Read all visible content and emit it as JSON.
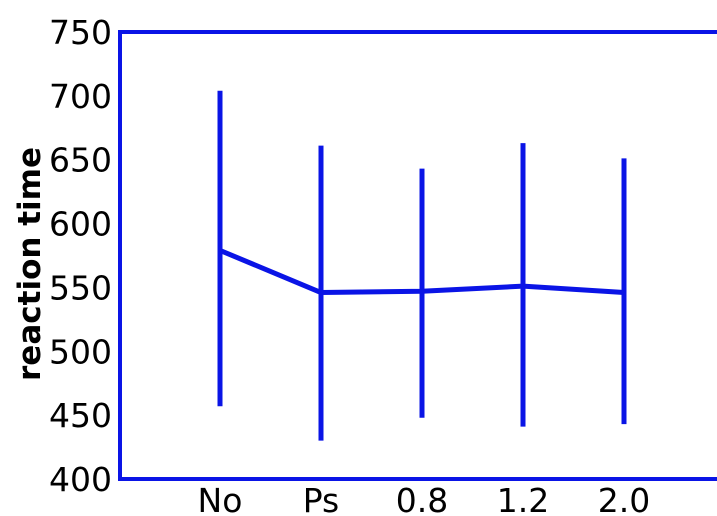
{
  "chart_data": {
    "type": "line",
    "title": "",
    "xlabel": "",
    "ylabel": "reaction time",
    "categories": [
      "No",
      "Ps",
      "0.8",
      "1.2",
      "2.0"
    ],
    "series": [
      {
        "values": [
          579,
          546,
          547,
          551,
          546
        ],
        "error_low": [
          457,
          430,
          448,
          441,
          443
        ],
        "error_high": [
          704,
          661,
          643,
          663,
          651
        ]
      }
    ],
    "ylim": [
      400,
      750
    ],
    "yticks": [
      400,
      450,
      500,
      550,
      600,
      650,
      700,
      750
    ],
    "grid": false,
    "legend": "none",
    "color": "#0a14e6"
  }
}
